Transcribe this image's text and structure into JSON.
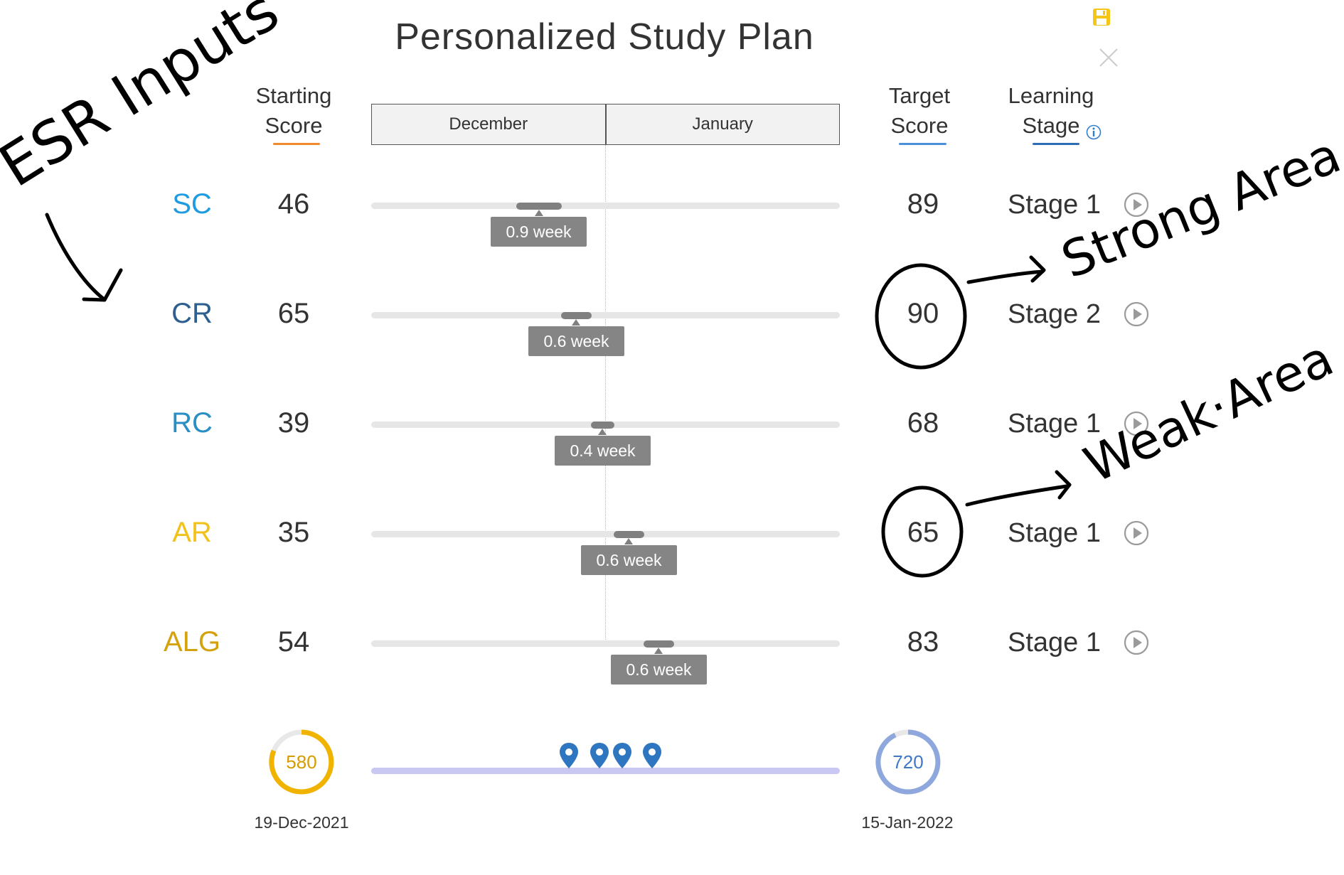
{
  "title": "Personalized Study Plan",
  "header": {
    "starting_score": [
      "Starting",
      "Score"
    ],
    "target_score": [
      "Target",
      "Score"
    ],
    "learning_stage": [
      "Learning",
      "Stage"
    ]
  },
  "months": [
    "December",
    "January"
  ],
  "sections": [
    {
      "code": "SC",
      "color": "#1f9ce0",
      "start": "46",
      "duration": "0.9 week",
      "target": "89",
      "stage": "Stage 1"
    },
    {
      "code": "CR",
      "color": "#2d5f8f",
      "start": "65",
      "duration": "0.6 week",
      "target": "90",
      "stage": "Stage 2"
    },
    {
      "code": "RC",
      "color": "#2a8fc4",
      "start": "39",
      "duration": "0.4 week",
      "target": "68",
      "stage": "Stage 1"
    },
    {
      "code": "AR",
      "color": "#f2c21b",
      "start": "35",
      "duration": "0.6 week",
      "target": "65",
      "stage": "Stage 1"
    },
    {
      "code": "ALG",
      "color": "#d4a20f",
      "start": "54",
      "duration": "0.6 week",
      "target": "83",
      "stage": "Stage 1"
    }
  ],
  "summary": {
    "start_total": "580",
    "start_date": "19-Dec-2021",
    "target_total": "720",
    "target_date": "15-Jan-2022",
    "start_color": "#f0b400",
    "target_color": "#8ea8dd"
  },
  "annotations": {
    "left": "ESR Inputs",
    "strong": "Strong Area",
    "weak": "Weak·Area"
  },
  "icons": {
    "save": "save-icon",
    "close": "close-icon",
    "info": "info-icon",
    "play": "play-circle-icon",
    "pin": "map-pin-icon"
  }
}
